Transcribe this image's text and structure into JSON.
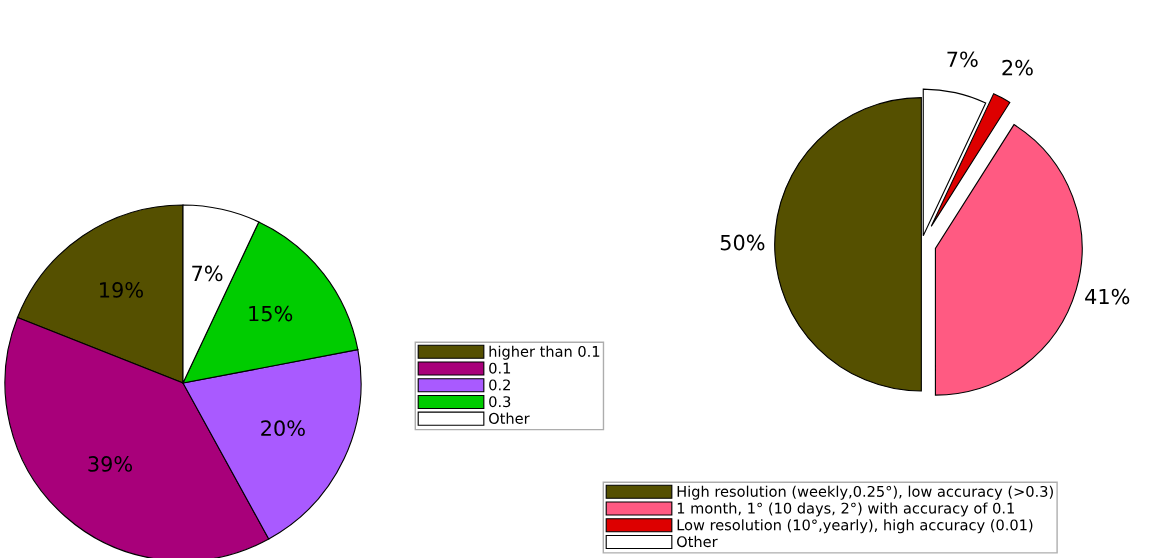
{
  "chart_data": [
    {
      "type": "pie",
      "categories": [
        "higher than 0.1",
        "0.1",
        "0.2",
        "0.3",
        "Other"
      ],
      "values": [
        19,
        39,
        20,
        15,
        7
      ],
      "colors": [
        "#555000",
        "#a8007a",
        "#a95aff",
        "#00cc00",
        "#ffffff"
      ],
      "value_labels": [
        "19%",
        "39%",
        "20%",
        "15%",
        "7%"
      ],
      "legend": "right"
    },
    {
      "type": "pie",
      "categories": [
        "High resolution (weekly,0.25°), low accuracy (>0.3)",
        "1 month, 1° (10 days, 2°) with accuracy of 0.1",
        "Low resolution (10°,yearly), high accuracy (0.01)",
        "Other"
      ],
      "values": [
        50,
        41,
        2,
        7
      ],
      "colors": [
        "#555000",
        "#ff5a82",
        "#dd0000",
        "#ffffff"
      ],
      "value_labels": [
        "50%",
        "41%",
        "2%",
        "7%"
      ],
      "legend": "bottom"
    }
  ]
}
